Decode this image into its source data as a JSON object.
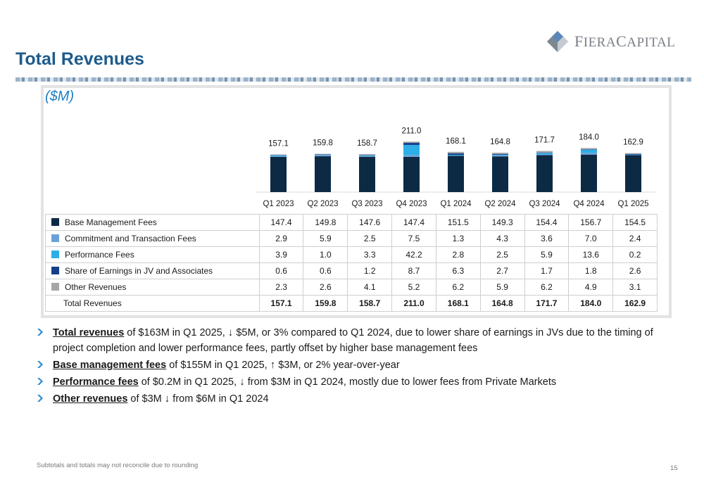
{
  "header": {
    "title": "Total Revenues",
    "unit": "($M)"
  },
  "logo": {
    "text_big": "F",
    "text_rest": "IERA",
    "text2_big": "C",
    "text2_rest": "APITAL"
  },
  "colors": {
    "base": "#0d2a45",
    "commitment": "#6aa2d8",
    "performance": "#2eaee6",
    "share": "#173f8a",
    "other": "#a6a6a6",
    "accent": "#1e5b8a"
  },
  "chart_data": {
    "type": "bar",
    "stacked": true,
    "categories": [
      "Q1 2023",
      "Q2 2023",
      "Q3 2023",
      "Q4 2023",
      "Q1 2024",
      "Q2 2024",
      "Q3 2024",
      "Q4 2024",
      "Q1 2025"
    ],
    "series": [
      {
        "name": "Base Management Fees",
        "values": [
          147.4,
          149.8,
          147.6,
          147.4,
          151.5,
          149.3,
          154.4,
          156.7,
          154.5
        ]
      },
      {
        "name": "Commitment and Transaction Fees",
        "values": [
          2.9,
          5.9,
          2.5,
          7.5,
          1.3,
          4.3,
          3.6,
          7.0,
          2.4
        ]
      },
      {
        "name": "Performance Fees",
        "values": [
          3.9,
          1.0,
          3.3,
          42.2,
          2.8,
          2.5,
          5.9,
          13.6,
          0.2
        ]
      },
      {
        "name": "Share of Earnings in JV and Associates",
        "values": [
          0.6,
          0.6,
          1.2,
          8.7,
          6.3,
          2.7,
          1.7,
          1.8,
          2.6
        ]
      },
      {
        "name": "Other Revenues",
        "values": [
          2.3,
          2.6,
          4.1,
          5.2,
          6.2,
          5.9,
          6.2,
          4.9,
          3.1
        ]
      }
    ],
    "totals": [
      157.1,
      159.8,
      158.7,
      211.0,
      168.1,
      164.8,
      171.7,
      184.0,
      162.9
    ],
    "totals_text": [
      "157.1",
      "159.8",
      "158.7",
      "211.0",
      "168.1",
      "164.8",
      "171.7",
      "184.0",
      "162.9"
    ],
    "ylim": [
      0,
      300
    ],
    "legend": "table"
  },
  "table": {
    "rows": [
      {
        "label": "Base Management Fees",
        "swatch": "#0d2a45",
        "values": [
          "147.4",
          "149.8",
          "147.6",
          "147.4",
          "151.5",
          "149.3",
          "154.4",
          "156.7",
          "154.5"
        ]
      },
      {
        "label": "Commitment and Transaction Fees",
        "swatch": "#6aa2d8",
        "values": [
          "2.9",
          "5.9",
          "2.5",
          "7.5",
          "1.3",
          "4.3",
          "3.6",
          "7.0",
          "2.4"
        ]
      },
      {
        "label": "Performance Fees",
        "swatch": "#2eaee6",
        "values": [
          "3.9",
          "1.0",
          "3.3",
          "42.2",
          "2.8",
          "2.5",
          "5.9",
          "13.6",
          "0.2"
        ]
      },
      {
        "label": "Share of Earnings in JV and Associates",
        "swatch": "#173f8a",
        "values": [
          "0.6",
          "0.6",
          "1.2",
          "8.7",
          "6.3",
          "2.7",
          "1.7",
          "1.8",
          "2.6"
        ]
      },
      {
        "label": "Other Revenues",
        "swatch": "#a6a6a6",
        "values": [
          "2.3",
          "2.6",
          "4.1",
          "5.2",
          "6.2",
          "5.9",
          "6.2",
          "4.9",
          "3.1"
        ]
      }
    ],
    "total": {
      "label": "Total Revenues",
      "values": [
        "157.1",
        "159.8",
        "158.7",
        "211.0",
        "168.1",
        "164.8",
        "171.7",
        "184.0",
        "162.9"
      ]
    }
  },
  "bullets": [
    {
      "bold": "Total revenues",
      "pre": " of $163M in Q1 2025, ",
      "arrow": "down",
      "post": " $5M, or 3% compared to Q1 2024, due to lower share of earnings in JVs due to the timing of project completion and lower performance fees, partly offset by higher base management fees"
    },
    {
      "bold": "Base management fees",
      "pre": " of $155M in Q1 2025, ",
      "arrow": "up",
      "post": " $3M, or 2% year-over-year"
    },
    {
      "bold": "Performance fees",
      "pre": " of $0.2M in Q1 2025, ",
      "arrow": "down",
      "post": " from $3M in Q1 2024, mostly due to lower fees from Private Markets"
    },
    {
      "bold": "Other revenues",
      "pre": " of $3M ",
      "arrow": "down",
      "post": " from $6M in Q1 2024"
    }
  ],
  "footer": {
    "note": "Subtotals and totals may not reconcile due to rounding",
    "page": "15"
  }
}
